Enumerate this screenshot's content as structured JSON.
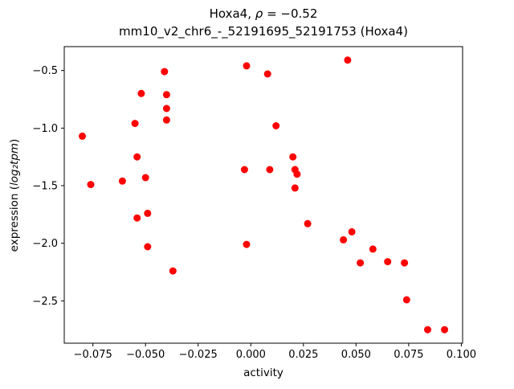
{
  "chart_data": {
    "type": "scatter",
    "title": "Hoxa4, ρ = −0.52",
    "title_parts": [
      "Hoxa4, ",
      "ρ",
      " = −0.52"
    ],
    "subtitle": "mm10_v2_chr6_-_52191695_52191753 (Hoxa4)",
    "xlabel": "activity",
    "ylabel": "expression (log₂tpm)",
    "ylabel_parts": [
      "expression (",
      "log₂tpm",
      ")"
    ],
    "marker_color": "#ff0000",
    "grid": false,
    "legend": "none",
    "xlim": [
      -0.0886,
      0.1006
    ],
    "ylim": [
      -2.867,
      -0.293
    ],
    "xticks": [
      -0.075,
      -0.05,
      -0.025,
      0,
      0.025,
      0.05,
      0.075,
      0.1
    ],
    "xtick_labels": [
      "−0.075",
      "−0.050",
      "−0.025",
      "0.000",
      "0.025",
      "0.050",
      "0.075",
      "0.100"
    ],
    "yticks": [
      -0.5,
      -1.0,
      -1.5,
      -2.0,
      -2.5
    ],
    "ytick_labels": [
      "−0.5",
      "−1.0",
      "−1.5",
      "−2.0",
      "−2.5"
    ],
    "points": [
      [
        -0.08,
        -1.07
      ],
      [
        -0.076,
        -1.49
      ],
      [
        -0.061,
        -1.46
      ],
      [
        -0.055,
        -0.96
      ],
      [
        -0.054,
        -1.25
      ],
      [
        -0.054,
        -1.78
      ],
      [
        -0.052,
        -0.7
      ],
      [
        -0.05,
        -1.43
      ],
      [
        -0.049,
        -1.74
      ],
      [
        -0.049,
        -2.03
      ],
      [
        -0.041,
        -0.51
      ],
      [
        -0.04,
        -0.71
      ],
      [
        -0.04,
        -0.83
      ],
      [
        -0.04,
        -0.93
      ],
      [
        -0.037,
        -2.24
      ],
      [
        -0.003,
        -1.36
      ],
      [
        -0.002,
        -0.46
      ],
      [
        -0.002,
        -2.01
      ],
      [
        0.008,
        -0.53
      ],
      [
        0.009,
        -1.36
      ],
      [
        0.012,
        -0.98
      ],
      [
        0.02,
        -1.25
      ],
      [
        0.021,
        -1.36
      ],
      [
        0.022,
        -1.4
      ],
      [
        0.021,
        -1.52
      ],
      [
        0.027,
        -1.83
      ],
      [
        0.044,
        -1.97
      ],
      [
        0.046,
        -0.41
      ],
      [
        0.048,
        -1.9
      ],
      [
        0.052,
        -2.17
      ],
      [
        0.058,
        -2.05
      ],
      [
        0.065,
        -2.16
      ],
      [
        0.073,
        -2.17
      ],
      [
        0.074,
        -2.49
      ],
      [
        0.084,
        -2.75
      ],
      [
        0.092,
        -2.75
      ]
    ]
  }
}
